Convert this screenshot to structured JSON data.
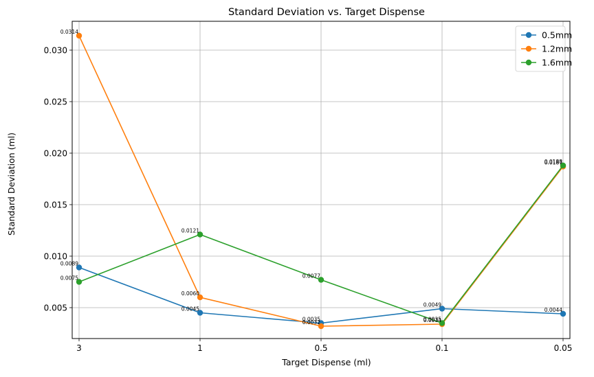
{
  "chart_data": {
    "type": "line",
    "title": "Standard Deviation vs. Target Dispense",
    "xlabel": "Target Dispense (ml)",
    "ylabel": "Standard Deviation (ml)",
    "categories": [
      "3",
      "1",
      "0.5",
      "0.1",
      "0.05"
    ],
    "ylim": [
      0.002,
      0.0328
    ],
    "yticks": [
      0.005,
      0.01,
      0.015,
      0.02,
      0.025,
      0.03
    ],
    "ytick_labels": [
      "0.005",
      "0.010",
      "0.015",
      "0.020",
      "0.025",
      "0.030"
    ],
    "grid": true,
    "legend_position": "top-right",
    "marker": "circle",
    "series": [
      {
        "name": "0.5mm",
        "color": "#1f77b4",
        "values": [
          0.0089,
          0.0045,
          0.0035,
          0.0049,
          0.0044
        ],
        "labels": [
          "0.0089",
          "0.0045",
          "0.0035",
          "0.0049",
          "0.0044"
        ]
      },
      {
        "name": "1.2mm",
        "color": "#ff7f0e",
        "values": [
          0.0314,
          0.006,
          0.0032,
          0.0034,
          0.0187
        ],
        "labels": [
          "0.0314",
          "0.0060",
          "0.0032",
          "0.0034",
          "0.0187"
        ]
      },
      {
        "name": "1.6mm",
        "color": "#2ca02c",
        "values": [
          0.0075,
          0.0121,
          0.0077,
          0.0035,
          0.0188
        ],
        "labels": [
          "0.0075",
          "0.0121",
          "0.0077",
          "0.0035",
          "0.0188"
        ]
      }
    ]
  }
}
